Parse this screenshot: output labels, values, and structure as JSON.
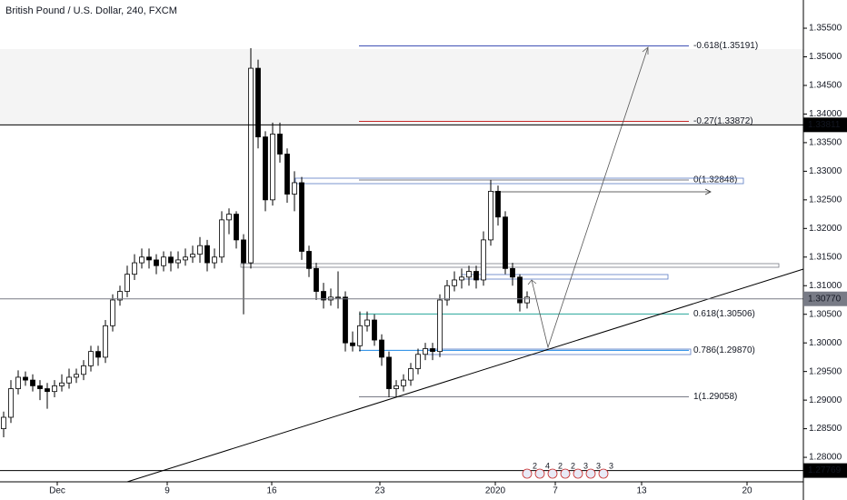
{
  "chart_data": {
    "type": "candlestick",
    "title": "British Pound / U.S. Dollar, 240, FXCM",
    "x": [
      1,
      3,
      5,
      7,
      9,
      11,
      13,
      15,
      17,
      19,
      21,
      23,
      25,
      27,
      29,
      31,
      33,
      35,
      37,
      39,
      41,
      43,
      45,
      47,
      49,
      51,
      53,
      55,
      57,
      59,
      61,
      63,
      65,
      67,
      69,
      71,
      73,
      75,
      77,
      79,
      81,
      83,
      85,
      87,
      89,
      91,
      93,
      95,
      97,
      99,
      101,
      103,
      105,
      107,
      109,
      111,
      113,
      115,
      117,
      119,
      121,
      123,
      125,
      127,
      129,
      131,
      133,
      135,
      137,
      139,
      141,
      143,
      145
    ],
    "open": [
      1.285,
      1.287,
      1.292,
      1.294,
      1.2935,
      1.2925,
      1.292,
      1.2915,
      1.2925,
      1.293,
      1.294,
      1.2945,
      1.296,
      1.2985,
      1.2975,
      1.303,
      1.3075,
      1.309,
      1.312,
      1.314,
      1.315,
      1.3145,
      1.3135,
      1.315,
      1.314,
      1.3145,
      1.315,
      1.3155,
      1.317,
      1.314,
      1.315,
      1.3215,
      1.3225,
      1.318,
      1.314,
      1.348,
      1.336,
      1.325,
      1.3365,
      1.333,
      1.326,
      1.328,
      1.316,
      1.313,
      1.309,
      1.3075,
      1.308,
      1.308,
      1.3,
      1.2995,
      1.303,
      1.304,
      1.3005,
      1.2975,
      1.292,
      1.2925,
      1.2935,
      1.2955,
      1.298,
      1.299,
      1.2985,
      1.3075,
      1.31,
      1.311,
      1.3115,
      1.3125,
      1.311,
      1.318,
      1.3265,
      1.322,
      1.313,
      1.3115,
      1.307
    ],
    "high": [
      1.288,
      1.2935,
      1.2952,
      1.295,
      1.2945,
      1.2935,
      1.293,
      1.2935,
      1.2945,
      1.2955,
      1.2955,
      1.297,
      1.2995,
      1.2995,
      1.304,
      1.3085,
      1.31,
      1.3135,
      1.3155,
      1.3165,
      1.3165,
      1.3155,
      1.316,
      1.316,
      1.316,
      1.3165,
      1.317,
      1.3185,
      1.318,
      1.3165,
      1.323,
      1.3235,
      1.323,
      1.319,
      1.3515,
      1.3495,
      1.337,
      1.3385,
      1.3385,
      1.334,
      1.33,
      1.329,
      1.317,
      1.314,
      1.3105,
      1.3095,
      1.3125,
      1.309,
      1.302,
      1.3055,
      1.3055,
      1.305,
      1.3015,
      1.2985,
      1.2935,
      1.2945,
      1.2965,
      1.299,
      1.3,
      1.3,
      1.3085,
      1.311,
      1.3125,
      1.313,
      1.3135,
      1.3135,
      1.3195,
      1.3285,
      1.3275,
      1.323,
      1.314,
      1.312,
      1.309
    ],
    "low": [
      1.2835,
      1.286,
      1.291,
      1.2925,
      1.2915,
      1.29,
      1.2885,
      1.2905,
      1.2915,
      1.292,
      1.293,
      1.2935,
      1.295,
      1.296,
      1.2965,
      1.302,
      1.3065,
      1.308,
      1.311,
      1.313,
      1.313,
      1.312,
      1.3125,
      1.3125,
      1.313,
      1.3135,
      1.314,
      1.314,
      1.3125,
      1.313,
      1.314,
      1.319,
      1.3165,
      1.305,
      1.313,
      1.334,
      1.323,
      1.324,
      1.3315,
      1.3245,
      1.323,
      1.3145,
      1.3115,
      1.3075,
      1.306,
      1.3065,
      1.306,
      1.2985,
      1.2985,
      1.2985,
      1.302,
      1.2995,
      1.296,
      1.2905,
      1.2905,
      1.2915,
      1.2925,
      1.2945,
      1.297,
      1.297,
      1.2975,
      1.3065,
      1.309,
      1.3095,
      1.31,
      1.3095,
      1.31,
      1.317,
      1.3205,
      1.312,
      1.31,
      1.3055,
      1.306
    ],
    "close": [
      1.287,
      1.292,
      1.294,
      1.2935,
      1.2925,
      1.292,
      1.2915,
      1.2925,
      1.293,
      1.294,
      1.2945,
      1.296,
      1.2985,
      1.2975,
      1.303,
      1.3075,
      1.309,
      1.312,
      1.314,
      1.315,
      1.3145,
      1.3135,
      1.315,
      1.314,
      1.3145,
      1.315,
      1.3155,
      1.317,
      1.314,
      1.315,
      1.3215,
      1.3225,
      1.318,
      1.314,
      1.348,
      1.336,
      1.325,
      1.3365,
      1.333,
      1.326,
      1.328,
      1.316,
      1.313,
      1.309,
      1.3075,
      1.308,
      1.308,
      1.3,
      1.2995,
      1.303,
      1.304,
      1.3005,
      1.2975,
      1.292,
      1.2925,
      1.2935,
      1.2955,
      1.298,
      1.299,
      1.2985,
      1.3075,
      1.31,
      1.311,
      1.3115,
      1.3125,
      1.311,
      1.318,
      1.3265,
      1.322,
      1.313,
      1.3115,
      1.307,
      1.308
    ],
    "up_color": "#ffffff",
    "down_color": "#000000",
    "xlim": [
      0,
      221
    ],
    "xticks": [
      {
        "value": 15.75,
        "label": "Dec"
      },
      {
        "value": 46,
        "label": "9"
      },
      {
        "value": 74.75,
        "label": "16"
      },
      {
        "value": 104.5,
        "label": "23"
      },
      {
        "value": 136.25,
        "label": "2020"
      },
      {
        "value": 152.75,
        "label": "7"
      },
      {
        "value": 176.5,
        "label": "13"
      },
      {
        "value": 205.5,
        "label": "20"
      }
    ],
    "ylim": [
      1.27572,
      1.35993
    ],
    "yticks": [
      {
        "value": 1.355,
        "label": "1.35500"
      },
      {
        "value": 1.35,
        "label": "1.35000"
      },
      {
        "value": 1.345,
        "label": "1.34500"
      },
      {
        "value": 1.34,
        "label": "1.34000"
      },
      {
        "value": 1.335,
        "label": "1.33500"
      },
      {
        "value": 1.33,
        "label": "1.33000"
      },
      {
        "value": 1.325,
        "label": "1.32500"
      },
      {
        "value": 1.32,
        "label": "1.32000"
      },
      {
        "value": 1.315,
        "label": "1.31500"
      },
      {
        "value": 1.31,
        "label": "1.31000"
      },
      {
        "value": 1.305,
        "label": "1.30500"
      },
      {
        "value": 1.3,
        "label": "1.30000"
      },
      {
        "value": 1.295,
        "label": "1.29500"
      },
      {
        "value": 1.29,
        "label": "1.29000"
      },
      {
        "value": 1.285,
        "label": "1.28500"
      },
      {
        "value": 1.28,
        "label": "1.28000"
      }
    ],
    "zone": [
      1.33811,
      1.35135
    ],
    "price_lines": [
      {
        "value": 1.33811,
        "color": "#000000"
      },
      {
        "value": {
          "value": 1.3077,
          "label": "1.30770"
        },
        "color": "#787b86"
      },
      {
        "value": 1.27769,
        "color": "#000000"
      }
    ],
    "fib_levels": [
      {
        "label": "-0.618(1.35191)",
        "price": 1.35191,
        "color": "#3f51b5"
      },
      {
        "label": "-0.27(1.33872)",
        "price": 1.33872,
        "color": "#c62828"
      },
      {
        "label": "0(1.32848)",
        "price": 1.32848,
        "color": "#787b86"
      },
      {
        "label": "0.618(1.30506)",
        "price": 1.30506,
        "color": "#26a69a"
      },
      {
        "label": "0.786(1.29870)",
        "price": 1.2987,
        "color": "#1e88e5"
      },
      {
        "label": "1(1.29058)",
        "price": 1.29058,
        "color": "#787b86"
      }
    ],
    "events": [
      "2",
      "4",
      "2",
      "2",
      "3",
      "3",
      "3"
    ]
  }
}
